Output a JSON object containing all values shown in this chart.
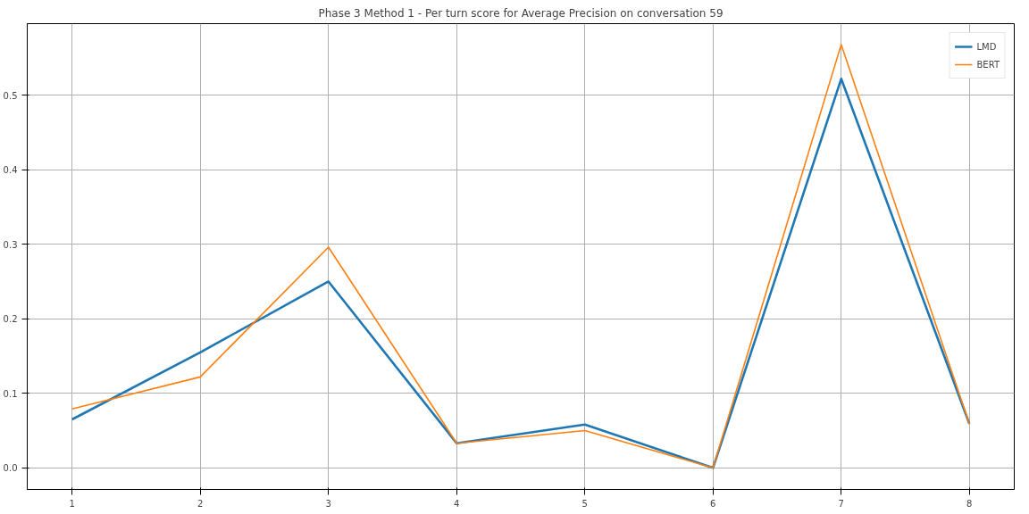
{
  "chart_data": {
    "type": "line",
    "title": "Phase 3 Method 1 - Per turn score for Average Precision on conversation 59",
    "x": [
      1,
      2,
      3,
      4,
      5,
      6,
      7,
      8
    ],
    "series": [
      {
        "name": "LMD",
        "color": "#1f77b4",
        "values": [
          0.065,
          0.155,
          0.25,
          0.033,
          0.058,
          0.0,
          0.522,
          0.059
        ]
      },
      {
        "name": "BERT",
        "color": "#ff7f0e",
        "values": [
          0.079,
          0.122,
          0.296,
          0.033,
          0.05,
          0.0,
          0.568,
          0.059
        ]
      }
    ],
    "xlim": [
      0.65,
      8.35
    ],
    "ylim": [
      -0.029,
      0.596
    ],
    "xticks": [
      1,
      2,
      3,
      4,
      5,
      6,
      7,
      8
    ],
    "yticks": [
      {
        "value": 0,
        "label": "0.0"
      },
      0.1,
      0.2,
      0.3,
      0.4,
      0.5
    ],
    "grid": true,
    "legend": "top right",
    "line_style": "solid"
  }
}
